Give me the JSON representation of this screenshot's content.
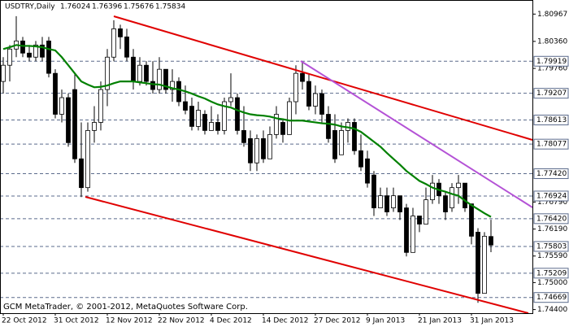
{
  "chart_data": {
    "type": "candlestick",
    "title": "USDTRY,Daily",
    "watermark": "GCM MetaTrader, © 2001-2012, MetaQuotes Software Corp.",
    "categories": [
      "22 Oct 2012",
      null,
      null,
      null,
      null,
      null,
      null,
      null,
      "31 Oct 2012",
      null,
      null,
      null,
      null,
      null,
      null,
      null,
      "12 Nov 2012",
      null,
      null,
      null,
      null,
      null,
      null,
      null,
      "22 Nov 2012",
      null,
      null,
      null,
      null,
      null,
      null,
      null,
      "4 Dec 2012",
      null,
      null,
      null,
      null,
      null,
      null,
      null,
      "14 Dec 2012",
      null,
      null,
      null,
      null,
      null,
      null,
      null,
      "27 Dec 2012",
      null,
      null,
      null,
      null,
      null,
      null,
      null,
      "9 Jan 2013",
      null,
      null,
      null,
      null,
      null,
      null,
      null,
      "21 Jan 2013",
      null,
      null,
      null,
      null,
      null,
      null,
      null,
      "31 Jan 2013",
      null,
      null,
      null
    ],
    "open": [
      1.7947,
      1.7983,
      1.8019,
      1.8037,
      1.801,
      1.8001,
      1.8028,
      1.8037,
      1.7965,
      1.7874,
      1.7911,
      1.7929,
      1.7775,
      1.7711,
      1.7838,
      1.7856,
      1.7929,
      1.8001,
      1.8064,
      1.8046,
      1.8001,
      1.7947,
      1.7983,
      1.7947,
      1.7929,
      1.7974,
      1.7929,
      1.7947,
      1.7902,
      1.7892,
      1.7847,
      1.7874,
      1.7838,
      1.7856,
      1.7838,
      1.7902,
      1.7911,
      1.7838,
      1.782,
      1.7766,
      1.782,
      1.7775,
      1.7829,
      1.7856,
      1.7829,
      1.7902,
      1.7965,
      1.7947,
      1.7892,
      1.792,
      1.7874,
      1.7838,
      1.7784,
      1.7838,
      1.7856,
      1.7793,
      1.7775,
      1.7739,
      1.7666,
      1.7693,
      1.7666,
      1.7693,
      1.7666,
      1.7567,
      1.7648,
      1.763,
      1.7684,
      1.7721,
      1.7693,
      1.7666,
      1.7711,
      1.7721,
      1.7675,
      1.7612,
      1.7476,
      1.76024
    ],
    "high": [
      1.8001,
      1.8028,
      1.8092,
      1.8046,
      1.8028,
      1.8037,
      1.8046,
      1.8046,
      1.7974,
      1.7929,
      1.792,
      1.7965,
      1.7856,
      1.7856,
      1.7892,
      1.7947,
      1.8019,
      1.8083,
      1.8073,
      1.8064,
      1.8019,
      1.8001,
      1.7992,
      1.7992,
      1.8001,
      1.7974,
      1.7974,
      1.7956,
      1.7938,
      1.7911,
      1.7902,
      1.7883,
      1.7892,
      1.7874,
      1.7911,
      1.7965,
      1.792,
      1.7892,
      1.7838,
      1.7829,
      1.7838,
      1.7847,
      1.7892,
      1.7865,
      1.7911,
      1.7983,
      1.7992,
      1.7965,
      1.7938,
      1.7929,
      1.7892,
      1.7874,
      1.7856,
      1.7865,
      1.7865,
      1.7829,
      1.7793,
      1.7748,
      1.7711,
      1.7711,
      1.7711,
      1.7693,
      1.7675,
      1.7666,
      1.7648,
      1.7711,
      1.7739,
      1.773,
      1.7702,
      1.7721,
      1.7739,
      1.7721,
      1.7675,
      1.7621,
      1.7612,
      1.76396
    ],
    "low": [
      1.792,
      1.7947,
      1.8001,
      1.8001,
      1.7992,
      1.7992,
      1.7992,
      1.7956,
      1.7865,
      1.7856,
      1.7802,
      1.7766,
      1.769,
      1.7702,
      1.7811,
      1.7838,
      1.7892,
      1.7992,
      1.8019,
      1.7992,
      1.7929,
      1.7938,
      1.7938,
      1.792,
      1.792,
      1.792,
      1.7902,
      1.7892,
      1.7874,
      1.7838,
      1.7838,
      1.7829,
      1.7838,
      1.7829,
      1.7829,
      1.7892,
      1.7829,
      1.7802,
      1.7748,
      1.7748,
      1.7766,
      1.7775,
      1.782,
      1.7811,
      1.7829,
      1.7874,
      1.7929,
      1.7883,
      1.7874,
      1.7856,
      1.7811,
      1.7766,
      1.7784,
      1.7811,
      1.7784,
      1.7748,
      1.7711,
      1.7648,
      1.7666,
      1.7648,
      1.7657,
      1.7639,
      1.7558,
      1.7567,
      1.7612,
      1.763,
      1.7675,
      1.7675,
      1.7639,
      1.7657,
      1.7675,
      1.7657,
      1.7585,
      1.7455,
      1.7476,
      1.75676
    ],
    "close": [
      1.7983,
      1.8019,
      1.8037,
      1.801,
      1.8001,
      1.8028,
      1.8001,
      1.7965,
      1.7874,
      1.7911,
      1.7811,
      1.7775,
      1.7711,
      1.7838,
      1.7856,
      1.7929,
      1.8001,
      1.8064,
      1.8046,
      1.8001,
      1.7947,
      1.7983,
      1.7947,
      1.7929,
      1.7974,
      1.7929,
      1.7947,
      1.7902,
      1.7883,
      1.7847,
      1.7883,
      1.7838,
      1.7856,
      1.7838,
      1.7902,
      1.7911,
      1.7838,
      1.7811,
      1.7766,
      1.782,
      1.7775,
      1.7829,
      1.7874,
      1.7829,
      1.7902,
      1.7965,
      1.7947,
      1.7892,
      1.792,
      1.7874,
      1.782,
      1.7775,
      1.7838,
      1.7856,
      1.7793,
      1.7757,
      1.7721,
      1.7666,
      1.7693,
      1.7657,
      1.7693,
      1.7657,
      1.7567,
      1.7648,
      1.763,
      1.7684,
      1.7721,
      1.7693,
      1.7657,
      1.7711,
      1.7721,
      1.7666,
      1.7603,
      1.7476,
      1.7603,
      1.75834
    ],
    "ma": {
      "color": "#008000",
      "values": [
        1.8019,
        1.8023,
        1.8028,
        1.8026,
        1.8026,
        1.8025,
        1.8023,
        1.8019,
        1.8016,
        1.8001,
        1.7983,
        1.7965,
        1.7947,
        1.794,
        1.7934,
        1.7935,
        1.7938,
        1.7943,
        1.7947,
        1.7947,
        1.7947,
        1.7945,
        1.7943,
        1.7941,
        1.794,
        1.7936,
        1.7932,
        1.7929,
        1.7925,
        1.792,
        1.7914,
        1.7909,
        1.7902,
        1.7896,
        1.7892,
        1.7889,
        1.7883,
        1.7878,
        1.7874,
        1.7872,
        1.7871,
        1.7869,
        1.7865,
        1.7863,
        1.786,
        1.786,
        1.786,
        1.7858,
        1.7856,
        1.7854,
        1.7853,
        1.7851,
        1.7847,
        1.7845,
        1.7842,
        1.7835,
        1.7824,
        1.7813,
        1.7802,
        1.7788,
        1.7775,
        1.7762,
        1.7748,
        1.7737,
        1.7726,
        1.7719,
        1.7711,
        1.7706,
        1.7702,
        1.7697,
        1.7693,
        1.7682,
        1.7672,
        1.7663,
        1.7654,
        1.7646
      ]
    },
    "up_color": "#ffffff",
    "down_color": "#000000",
    "ylim": [
      1.7432,
      1.8128
    ],
    "yticks": [
      1.80967,
      {
        "value": 1.8036,
        "label": "1.80360"
      },
      {
        "value": 1.7976,
        "label": "1.79760"
      },
      {
        "value": 1.7679,
        "label": "1.76790"
      },
      {
        "value": 1.7619,
        "label": "1.76190"
      },
      {
        "value": 1.7559,
        "label": "1.75590"
      },
      {
        "value": 1.75,
        "label": "1.75000"
      },
      {
        "value": 1.744,
        "label": "1.74400"
      }
    ],
    "levels": [
      1.79919,
      1.79207,
      1.78613,
      1.78077,
      {
        "value": 1.7742,
        "label": "1.77420"
      },
      1.76924,
      {
        "value": 1.7642,
        "label": "1.76420"
      },
      1.75803,
      1.75209,
      1.74669
    ],
    "level_color": "#5b6b8c"
  }
}
